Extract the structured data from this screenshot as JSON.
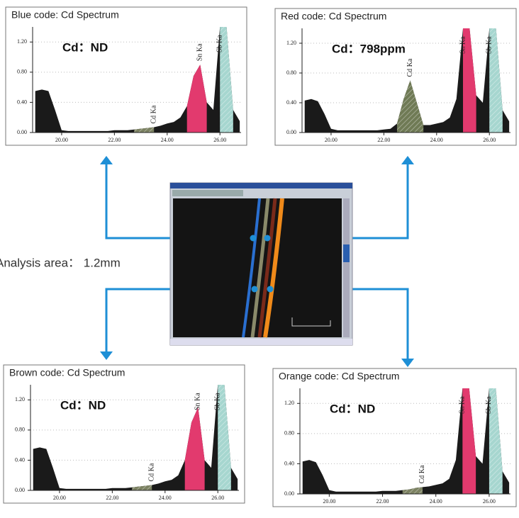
{
  "center_label": "Analysis area： 1.2mm",
  "chart_data": [
    {
      "type": "area",
      "title": "Blue code: Cd Spectrum",
      "annotation": "Cd：ND",
      "color": "#1a1a1a",
      "x": [
        19,
        19.25,
        19.5,
        19.75,
        20,
        20.25,
        20.5,
        20.75,
        21,
        21.25,
        21.5,
        21.75,
        22,
        22.25,
        22.5,
        22.75,
        23,
        23.25,
        23.5,
        23.75,
        24,
        24.25,
        24.5,
        24.75,
        25,
        25.25,
        25.5,
        25.75,
        26,
        26.25,
        26.5,
        26.75
      ],
      "values": [
        0.55,
        0.57,
        0.55,
        0.3,
        0.03,
        0.02,
        0.02,
        0.02,
        0.02,
        0.02,
        0.02,
        0.02,
        0.03,
        0.03,
        0.03,
        0.04,
        0.05,
        0.06,
        0.07,
        0.09,
        0.12,
        0.14,
        0.2,
        0.35,
        0.75,
        0.9,
        0.4,
        0.3,
        1.4,
        1.4,
        0.3,
        0.15
      ],
      "series": [
        {
          "name": "Cd Ka",
          "color": "#7c8262",
          "hatch": true,
          "x": [
            22.75,
            23,
            23.25,
            23.5
          ],
          "values": [
            0.04,
            0.05,
            0.06,
            0.07
          ]
        },
        {
          "name": "Sn Ka",
          "color": "#e23a6e",
          "hatch": false,
          "x": [
            24.75,
            25,
            25.25,
            25.5
          ],
          "values": [
            0.35,
            0.75,
            0.9,
            0.4
          ]
        },
        {
          "name": "Sb Ka",
          "color": "#a6d6cf",
          "hatch": true,
          "x": [
            26,
            26.25,
            26.5
          ],
          "values": [
            1.4,
            1.4,
            0.3
          ]
        }
      ],
      "xlim": [
        18.9,
        26.8
      ],
      "ylim": [
        0,
        1.4
      ],
      "xticks": [
        {
          "value": 20,
          "label": "20.00"
        },
        {
          "value": 22,
          "label": "22.00"
        },
        {
          "value": 24,
          "label": "24.00"
        },
        {
          "value": 26,
          "label": "26.00"
        }
      ],
      "yticks": [
        {
          "value": 0,
          "label": "0.00"
        },
        {
          "value": 0.4,
          "label": "0.40"
        },
        {
          "value": 0.8,
          "label": "0.80"
        },
        {
          "value": 1.2,
          "label": "1.20"
        }
      ],
      "grid": true
    },
    {
      "type": "area",
      "title": "Red code: Cd Spectrum",
      "annotation": "Cd：798ppm",
      "color": "#1a1a1a",
      "x": [
        19,
        19.25,
        19.5,
        19.75,
        20,
        20.25,
        20.5,
        20.75,
        21,
        21.25,
        21.5,
        21.75,
        22,
        22.25,
        22.5,
        22.75,
        23,
        23.25,
        23.5,
        23.75,
        24,
        24.25,
        24.5,
        24.75,
        25,
        25.25,
        25.5,
        25.75,
        26,
        26.25,
        26.5,
        26.75
      ],
      "values": [
        0.43,
        0.45,
        0.42,
        0.25,
        0.05,
        0.03,
        0.03,
        0.03,
        0.03,
        0.03,
        0.03,
        0.03,
        0.04,
        0.05,
        0.12,
        0.45,
        0.7,
        0.4,
        0.1,
        0.1,
        0.12,
        0.14,
        0.2,
        0.45,
        1.4,
        1.4,
        0.5,
        0.4,
        1.4,
        1.4,
        0.3,
        0.15
      ],
      "series": [
        {
          "name": "Cd Ka",
          "color": "#6f7a55",
          "hatch": true,
          "x": [
            22.5,
            22.75,
            23,
            23.25,
            23.5
          ],
          "values": [
            0.12,
            0.45,
            0.7,
            0.4,
            0.1
          ]
        },
        {
          "name": "Sn Ka",
          "color": "#e23a6e",
          "hatch": false,
          "x": [
            25,
            25.25,
            25.5
          ],
          "values": [
            1.4,
            1.4,
            0.5
          ]
        },
        {
          "name": "Sb Ka",
          "color": "#a6d6cf",
          "hatch": true,
          "x": [
            26,
            26.25,
            26.5
          ],
          "values": [
            1.4,
            1.4,
            0.3
          ]
        }
      ],
      "xlim": [
        18.9,
        26.8
      ],
      "ylim": [
        0,
        1.4
      ],
      "xticks": [
        {
          "value": 20,
          "label": "20.00"
        },
        {
          "value": 22,
          "label": "22.00"
        },
        {
          "value": 24,
          "label": "24.00"
        },
        {
          "value": 26,
          "label": "26.00"
        }
      ],
      "yticks": [
        {
          "value": 0,
          "label": "0.00"
        },
        {
          "value": 0.4,
          "label": "0.40"
        },
        {
          "value": 0.8,
          "label": "0.80"
        },
        {
          "value": 1.2,
          "label": "1.20"
        }
      ],
      "grid": true
    },
    {
      "type": "area",
      "title": "Brown code: Cd Spectrum",
      "annotation": "Cd：ND",
      "color": "#1a1a1a",
      "x": [
        19,
        19.25,
        19.5,
        19.75,
        20,
        20.25,
        20.5,
        20.75,
        21,
        21.25,
        21.5,
        21.75,
        22,
        22.25,
        22.5,
        22.75,
        23,
        23.25,
        23.5,
        23.75,
        24,
        24.25,
        24.5,
        24.75,
        25,
        25.25,
        25.5,
        25.75,
        26,
        26.25,
        26.5,
        26.75
      ],
      "values": [
        0.55,
        0.57,
        0.55,
        0.3,
        0.03,
        0.02,
        0.02,
        0.02,
        0.02,
        0.02,
        0.02,
        0.02,
        0.03,
        0.03,
        0.03,
        0.04,
        0.05,
        0.06,
        0.07,
        0.09,
        0.12,
        0.14,
        0.2,
        0.4,
        0.9,
        1.1,
        0.4,
        0.3,
        1.4,
        1.4,
        0.3,
        0.15
      ],
      "series": [
        {
          "name": "Cd Ka",
          "color": "#7c8262",
          "hatch": true,
          "x": [
            22.75,
            23,
            23.25,
            23.5
          ],
          "values": [
            0.04,
            0.05,
            0.06,
            0.07
          ]
        },
        {
          "name": "Sn Ka",
          "color": "#e23a6e",
          "hatch": false,
          "x": [
            24.75,
            25,
            25.25,
            25.5
          ],
          "values": [
            0.4,
            0.9,
            1.1,
            0.4
          ]
        },
        {
          "name": "Sb Ka",
          "color": "#a6d6cf",
          "hatch": true,
          "x": [
            26,
            26.25,
            26.5
          ],
          "values": [
            1.4,
            1.4,
            0.3
          ]
        }
      ],
      "xlim": [
        18.9,
        26.8
      ],
      "ylim": [
        0,
        1.4
      ],
      "xticks": [
        {
          "value": 20,
          "label": "20.00"
        },
        {
          "value": 22,
          "label": "22.00"
        },
        {
          "value": 24,
          "label": "24.00"
        },
        {
          "value": 26,
          "label": "26.00"
        }
      ],
      "yticks": [
        {
          "value": 0,
          "label": "0.00"
        },
        {
          "value": 0.4,
          "label": "0.40"
        },
        {
          "value": 0.8,
          "label": "0.80"
        },
        {
          "value": 1.2,
          "label": "1.20"
        }
      ],
      "grid": true
    },
    {
      "type": "area",
      "title": "Orange code: Cd Spectrum",
      "annotation": "Cd：ND",
      "color": "#1a1a1a",
      "x": [
        19,
        19.25,
        19.5,
        19.75,
        20,
        20.25,
        20.5,
        20.75,
        21,
        21.25,
        21.5,
        21.75,
        22,
        22.25,
        22.5,
        22.75,
        23,
        23.25,
        23.5,
        23.75,
        24,
        24.25,
        24.5,
        24.75,
        25,
        25.25,
        25.5,
        25.75,
        26,
        26.25,
        26.5,
        26.75
      ],
      "values": [
        0.43,
        0.45,
        0.42,
        0.25,
        0.05,
        0.03,
        0.03,
        0.03,
        0.03,
        0.03,
        0.03,
        0.03,
        0.04,
        0.04,
        0.04,
        0.05,
        0.06,
        0.08,
        0.09,
        0.1,
        0.12,
        0.14,
        0.2,
        0.45,
        1.4,
        1.4,
        0.5,
        0.4,
        1.4,
        1.4,
        0.3,
        0.15
      ],
      "series": [
        {
          "name": "Cd Ka",
          "color": "#7c8262",
          "hatch": true,
          "x": [
            22.75,
            23,
            23.25,
            23.5
          ],
          "values": [
            0.05,
            0.06,
            0.08,
            0.09
          ]
        },
        {
          "name": "Sn Ka",
          "color": "#e23a6e",
          "hatch": false,
          "x": [
            25,
            25.25,
            25.5
          ],
          "values": [
            1.4,
            1.4,
            0.5
          ]
        },
        {
          "name": "Sb Ka",
          "color": "#a6d6cf",
          "hatch": true,
          "x": [
            26,
            26.25,
            26.5
          ],
          "values": [
            1.4,
            1.4,
            0.3
          ]
        }
      ],
      "xlim": [
        18.9,
        26.8
      ],
      "ylim": [
        0,
        1.4
      ],
      "xticks": [
        {
          "value": 20,
          "label": "20.00"
        },
        {
          "value": 22,
          "label": "22.00"
        },
        {
          "value": 24,
          "label": "24.00"
        },
        {
          "value": 26,
          "label": "26.00"
        }
      ],
      "yticks": [
        {
          "value": 0,
          "label": "0.00"
        },
        {
          "value": 0.4,
          "label": "0.40"
        },
        {
          "value": 0.8,
          "label": "0.80"
        },
        {
          "value": 1.2,
          "label": "1.20"
        }
      ],
      "grid": true
    }
  ]
}
